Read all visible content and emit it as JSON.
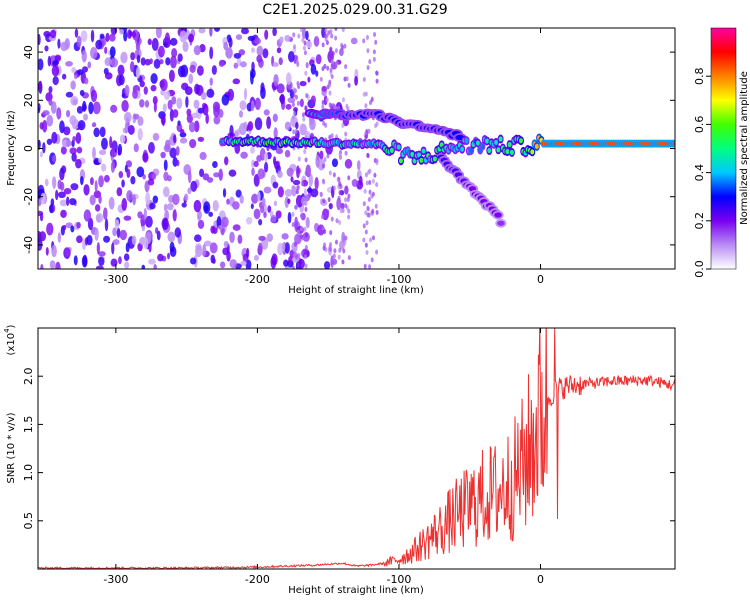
{
  "title": "C2E1.2025.029.00.31.G29",
  "chart_data": [
    {
      "type": "heatmap",
      "xlabel": "Height of straight line (km)",
      "ylabel": "Frequency (Hz)",
      "xlim": [
        -355,
        95
      ],
      "ylim": [
        -50,
        50
      ],
      "x_ticks": [
        -300,
        -200,
        -100,
        0
      ],
      "y_ticks": [
        -40,
        -20,
        0,
        20,
        40
      ],
      "colorbar": {
        "label": "Normalized spectral amplitude",
        "range": [
          0,
          1
        ],
        "ticks": [
          "0.0",
          "0.2",
          "0.4",
          "0.6",
          "0.8"
        ],
        "colors": [
          "#ffffff",
          "#b98cf5",
          "#7a00f0",
          "#0000ff",
          "#00c8ff",
          "#00ff80",
          "#40ff00",
          "#ffff00",
          "#ff8000",
          "#ff0000",
          "#ff00a0"
        ]
      },
      "features": {
        "noise_region_x": [
          -355,
          -175
        ],
        "noise_region_amplitude": 0.2,
        "main_line": {
          "x": [
            -225,
            -200,
            -180,
            -160,
            -140,
            -120,
            -110,
            -100,
            -90,
            -80,
            -70,
            -60,
            -50,
            -40,
            -30,
            -20,
            -10,
            0,
            20,
            40,
            60,
            80,
            95
          ],
          "frequency": [
            3,
            3,
            2.5,
            2.5,
            2,
            2,
            1,
            -2,
            -4,
            -3,
            -1,
            1,
            1,
            2,
            1,
            1,
            1,
            2,
            2,
            2,
            2,
            2,
            2
          ],
          "amplitude": [
            0.45,
            0.5,
            0.55,
            0.5,
            0.45,
            0.4,
            0.45,
            0.5,
            0.45,
            0.5,
            0.45,
            0.4,
            0.4,
            0.4,
            0.45,
            0.5,
            0.55,
            0.85,
            0.85,
            0.85,
            0.85,
            0.85,
            0.85
          ]
        },
        "upper_branch": {
          "x": [
            -162,
            -150,
            -130,
            -115,
            -100,
            -85,
            -70,
            -55
          ],
          "frequency": [
            14,
            14,
            14,
            14,
            11,
            9,
            7,
            5
          ],
          "amplitude": [
            0.4,
            0.35,
            0.3,
            0.3,
            0.3,
            0.3,
            0.3,
            0.3
          ]
        },
        "lower_branch": {
          "x": [
            -70,
            -60,
            -50,
            -40,
            -30,
            -27
          ],
          "frequency": [
            -4,
            -10,
            -16,
            -22,
            -28,
            -32
          ],
          "amplitude": [
            0.25,
            0.25,
            0.2,
            0.2,
            0.2,
            0.15
          ]
        }
      }
    },
    {
      "type": "line",
      "xlabel": "Height of straight line (km)",
      "ylabel": "SNR (10 * v/v)",
      "y_multiplier": "(x10",
      "y_exponent": "4",
      "xlim": [
        -355,
        95
      ],
      "ylim": [
        0,
        2.5
      ],
      "x_ticks": [
        -300,
        -200,
        -100,
        0
      ],
      "y_ticks": [
        "0.5",
        "1.0",
        "1.5",
        "2.0"
      ],
      "series": [
        {
          "color": "#ee3030",
          "x": [
            -355,
            -300,
            -250,
            -200,
            -180,
            -160,
            -150,
            -140,
            -130,
            -120,
            -110,
            -100,
            -90,
            -80,
            -70,
            -60,
            -50,
            -40,
            -30,
            -20,
            -15,
            -10,
            -5,
            0,
            5,
            10,
            15,
            20,
            30,
            40,
            50,
            60,
            70,
            80,
            95
          ],
          "y": [
            0.01,
            0.01,
            0.01,
            0.02,
            0.03,
            0.04,
            0.05,
            0.06,
            0.03,
            0.04,
            0.06,
            0.1,
            0.18,
            0.3,
            0.42,
            0.55,
            0.65,
            0.75,
            0.8,
            0.9,
            1.0,
            1.15,
            1.35,
            1.6,
            1.75,
            1.85,
            1.88,
            1.9,
            1.92,
            1.93,
            1.95,
            1.95,
            1.96,
            1.95,
            1.9
          ]
        }
      ],
      "annotations": {
        "spike_x": 10,
        "spike_y": 2.5,
        "dip_x": 12,
        "dip_y": 0.52
      }
    }
  ]
}
